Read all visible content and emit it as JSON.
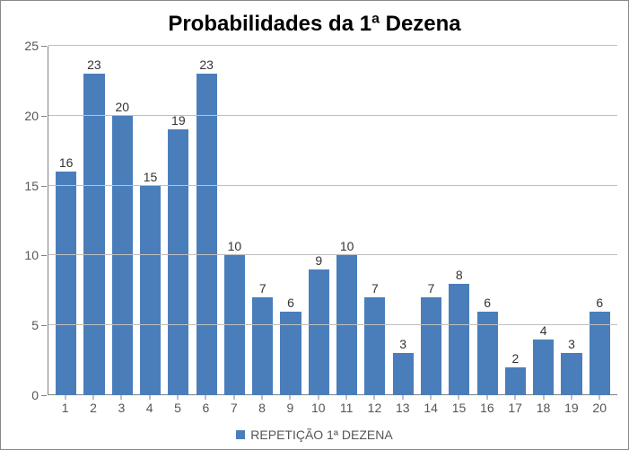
{
  "chart": {
    "type": "bar",
    "title": "Probabilidades da 1ª Dezena",
    "title_fontsize": 24,
    "title_fontweight": "bold",
    "categories": [
      "1",
      "2",
      "3",
      "4",
      "5",
      "6",
      "7",
      "8",
      "9",
      "10",
      "11",
      "12",
      "13",
      "14",
      "15",
      "16",
      "17",
      "18",
      "19",
      "20"
    ],
    "values": [
      16,
      23,
      20,
      15,
      19,
      23,
      10,
      7,
      6,
      9,
      10,
      7,
      3,
      7,
      8,
      6,
      2,
      4,
      3,
      6
    ],
    "value_labels": [
      "16",
      "23",
      "20",
      "15",
      "19",
      "23",
      "10",
      "7",
      "6",
      "9",
      "10",
      "7",
      "3",
      "7",
      "8",
      "6",
      "2",
      "4",
      "3",
      "6"
    ],
    "bar_color": "#4a7ebb",
    "bar_width": 0.74,
    "ylim": [
      0,
      25
    ],
    "yticks": [
      0,
      5,
      10,
      15,
      20,
      25
    ],
    "ytick_labels": [
      "0",
      "5",
      "10",
      "15",
      "20",
      "25"
    ],
    "axis_fontsize": 14,
    "label_fontsize": 14,
    "grid_color": "#bfbfbf",
    "axis_color": "#808080",
    "background_color": "#ffffff",
    "border_color": "#888888",
    "legend": {
      "label": "REPETIÇÃO 1ª DEZENA",
      "swatch_color": "#4a7ebb",
      "fontsize": 14
    }
  }
}
